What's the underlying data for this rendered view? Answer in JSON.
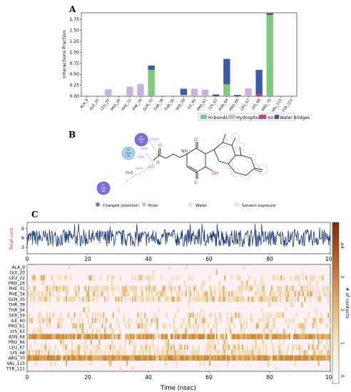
{
  "panels": {
    "a": "A",
    "b": "B",
    "c": "C"
  },
  "chart_data": [
    {
      "type": "bar",
      "ylabel": "Interactions Fraction",
      "ylim": [
        0,
        1.9
      ],
      "yticks": [
        "0.00",
        "0.25",
        "0.50",
        "0.75",
        "1.00",
        "1.25",
        "1.50",
        "1.75"
      ],
      "categories": [
        "ALA_9",
        "GLY_20",
        "LEU_22",
        "PRO_26",
        "PHE_31",
        "PHE_34",
        "GLN_35",
        "THR_39",
        "THR_56",
        "SER_59",
        "ILE_60",
        "PRO_61",
        "LYS_63",
        "ASN_64",
        "PRO_66",
        "LEU_67",
        "LYS_68",
        "ARG_70",
        "VAL_115",
        "TYR_121"
      ],
      "series": [
        {
          "name": "H-bonds",
          "color": "#7fc97f",
          "values": [
            0,
            0,
            0,
            0,
            0,
            0,
            0.6,
            0,
            0,
            0,
            0,
            0,
            0,
            0.27,
            0,
            0,
            0,
            1.85,
            0,
            0
          ]
        },
        {
          "name": "Hydrophobic",
          "color": "#c9b3dc",
          "values": [
            0,
            0,
            0.16,
            0,
            0.22,
            0.28,
            0,
            0,
            0,
            0.03,
            0.17,
            0.15,
            0,
            0,
            0,
            0.18,
            0,
            0,
            0,
            0
          ]
        },
        {
          "name": "Ionic",
          "color": "#c9418a",
          "values": [
            0,
            0,
            0,
            0,
            0,
            0,
            0,
            0,
            0,
            0,
            0,
            0,
            0,
            0,
            0,
            0,
            0.05,
            0,
            0,
            0
          ]
        },
        {
          "name": "Water bridges",
          "color": "#3b5ba8",
          "values": [
            0,
            0,
            0,
            0,
            0,
            0,
            0.1,
            0,
            0,
            0.14,
            0,
            0,
            0.04,
            0.58,
            0.03,
            0,
            0.55,
            0.04,
            0,
            0
          ]
        }
      ],
      "legend": "bottom-right"
    },
    {
      "type": "line",
      "ylabel": "Total cont.",
      "xlabel": "Time (nsec)",
      "xlim": [
        0,
        100
      ],
      "ylim": [
        1,
        11
      ],
      "yticks": [
        "3",
        "6",
        "9"
      ],
      "xticks": [
        "0",
        "20",
        "40",
        "60",
        "80",
        "100"
      ],
      "color": "#1f3c7a"
    },
    {
      "type": "heatmap",
      "rows": [
        "ALA_9",
        "GLY_20",
        "LEU_22",
        "PRO_26",
        "PHE_31",
        "PHE_34",
        "GLN_35",
        "THR_39",
        "THR_56",
        "SER_59",
        "ILE_60",
        "PRO_61",
        "LYS_63",
        "ASN_64",
        "PRO_66",
        "LEU_67",
        "LYS_68",
        "ARG_70",
        "VAL_115",
        "TYR_121"
      ],
      "row_density": [
        0.02,
        0.01,
        0.3,
        0.05,
        0.5,
        0.55,
        0.6,
        0.03,
        0.04,
        0.25,
        0.35,
        0.3,
        0.2,
        0.85,
        0.15,
        0.4,
        0.6,
        0.97,
        0.08,
        0.02
      ],
      "xlabel": "Time (nsec)",
      "xticks": [
        "0",
        "20",
        "40",
        "60",
        "80",
        "100"
      ],
      "colorbar_label": "# of contacts",
      "colorbar_ticks": [
        "≥4",
        "3",
        "2",
        "1",
        "0"
      ]
    }
  ],
  "legend_a": {
    "hbonds": "H-bonds",
    "hydrophobic": "Hydrophobic",
    "ionic": "Ionic",
    "water": "Water bridges"
  },
  "diagram_b": {
    "residues": [
      {
        "chain": "A:",
        "name": "ARG",
        "num": "70"
      },
      {
        "chain": "A:",
        "name": "GLN",
        "num": "35"
      },
      {
        "chain": "A:",
        "name": "LYS",
        "num": "68"
      }
    ],
    "percents": [
      "123%",
      "46%",
      "59%",
      "88%",
      "50%"
    ],
    "water": "H₂O",
    "legend": {
      "charged": "Charged (positive)",
      "polar": "Polar",
      "water": "Water",
      "solvent": "Solvent exposure"
    }
  }
}
